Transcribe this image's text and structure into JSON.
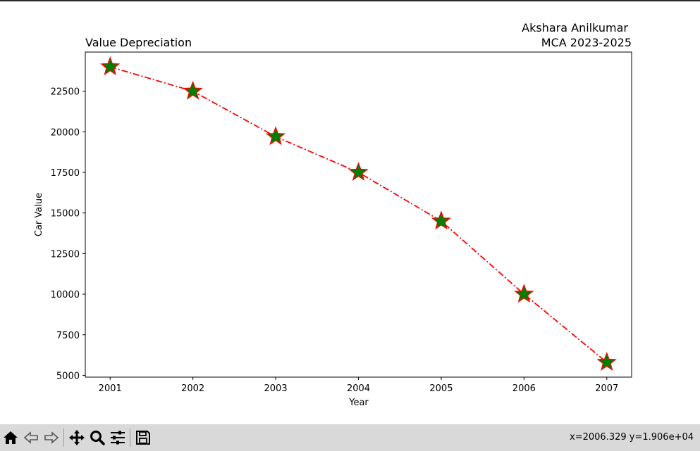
{
  "window": {
    "coords_readout": "x=2006.329 y=1.906e+04"
  },
  "toolbar": {
    "buttons": [
      {
        "name": "home-icon",
        "label": "Home"
      },
      {
        "name": "back-icon",
        "label": "Back"
      },
      {
        "name": "forward-icon",
        "label": "Forward"
      },
      {
        "name": "pan-icon",
        "label": "Pan"
      },
      {
        "name": "zoom-icon",
        "label": "Zoom"
      },
      {
        "name": "configure-subplots-icon",
        "label": "Configure subplots"
      },
      {
        "name": "save-icon",
        "label": "Save"
      }
    ]
  },
  "chart_data": {
    "type": "line",
    "title_left": "Value Depreciation",
    "title_right_line1": "Akshara Anilkumar",
    "title_right_line2": "MCA 2023-2025",
    "xlabel": "Year",
    "ylabel": "Car Value",
    "x": [
      2001,
      2002,
      2003,
      2004,
      2005,
      2006,
      2007
    ],
    "x_tick_labels": [
      "2001",
      "2002",
      "2003",
      "2004",
      "2005",
      "2006",
      "2007"
    ],
    "y": [
      24000,
      22500,
      19700,
      17500,
      14500,
      10000,
      5800
    ],
    "y_ticks": [
      5000,
      7500,
      10000,
      12500,
      15000,
      17500,
      20000,
      22500
    ],
    "y_tick_labels": [
      "5000",
      "7500",
      "10000",
      "12500",
      "15000",
      "17500",
      "20000",
      "22500"
    ],
    "xlim": [
      2000.7,
      2007.3
    ],
    "ylim": [
      4890,
      24910
    ],
    "line_style": "dash-dot",
    "line_color": "#ff0000",
    "marker": "star",
    "marker_face_color": "#008000",
    "marker_edge_color": "#ff0000",
    "grid": false,
    "legend": "none"
  }
}
